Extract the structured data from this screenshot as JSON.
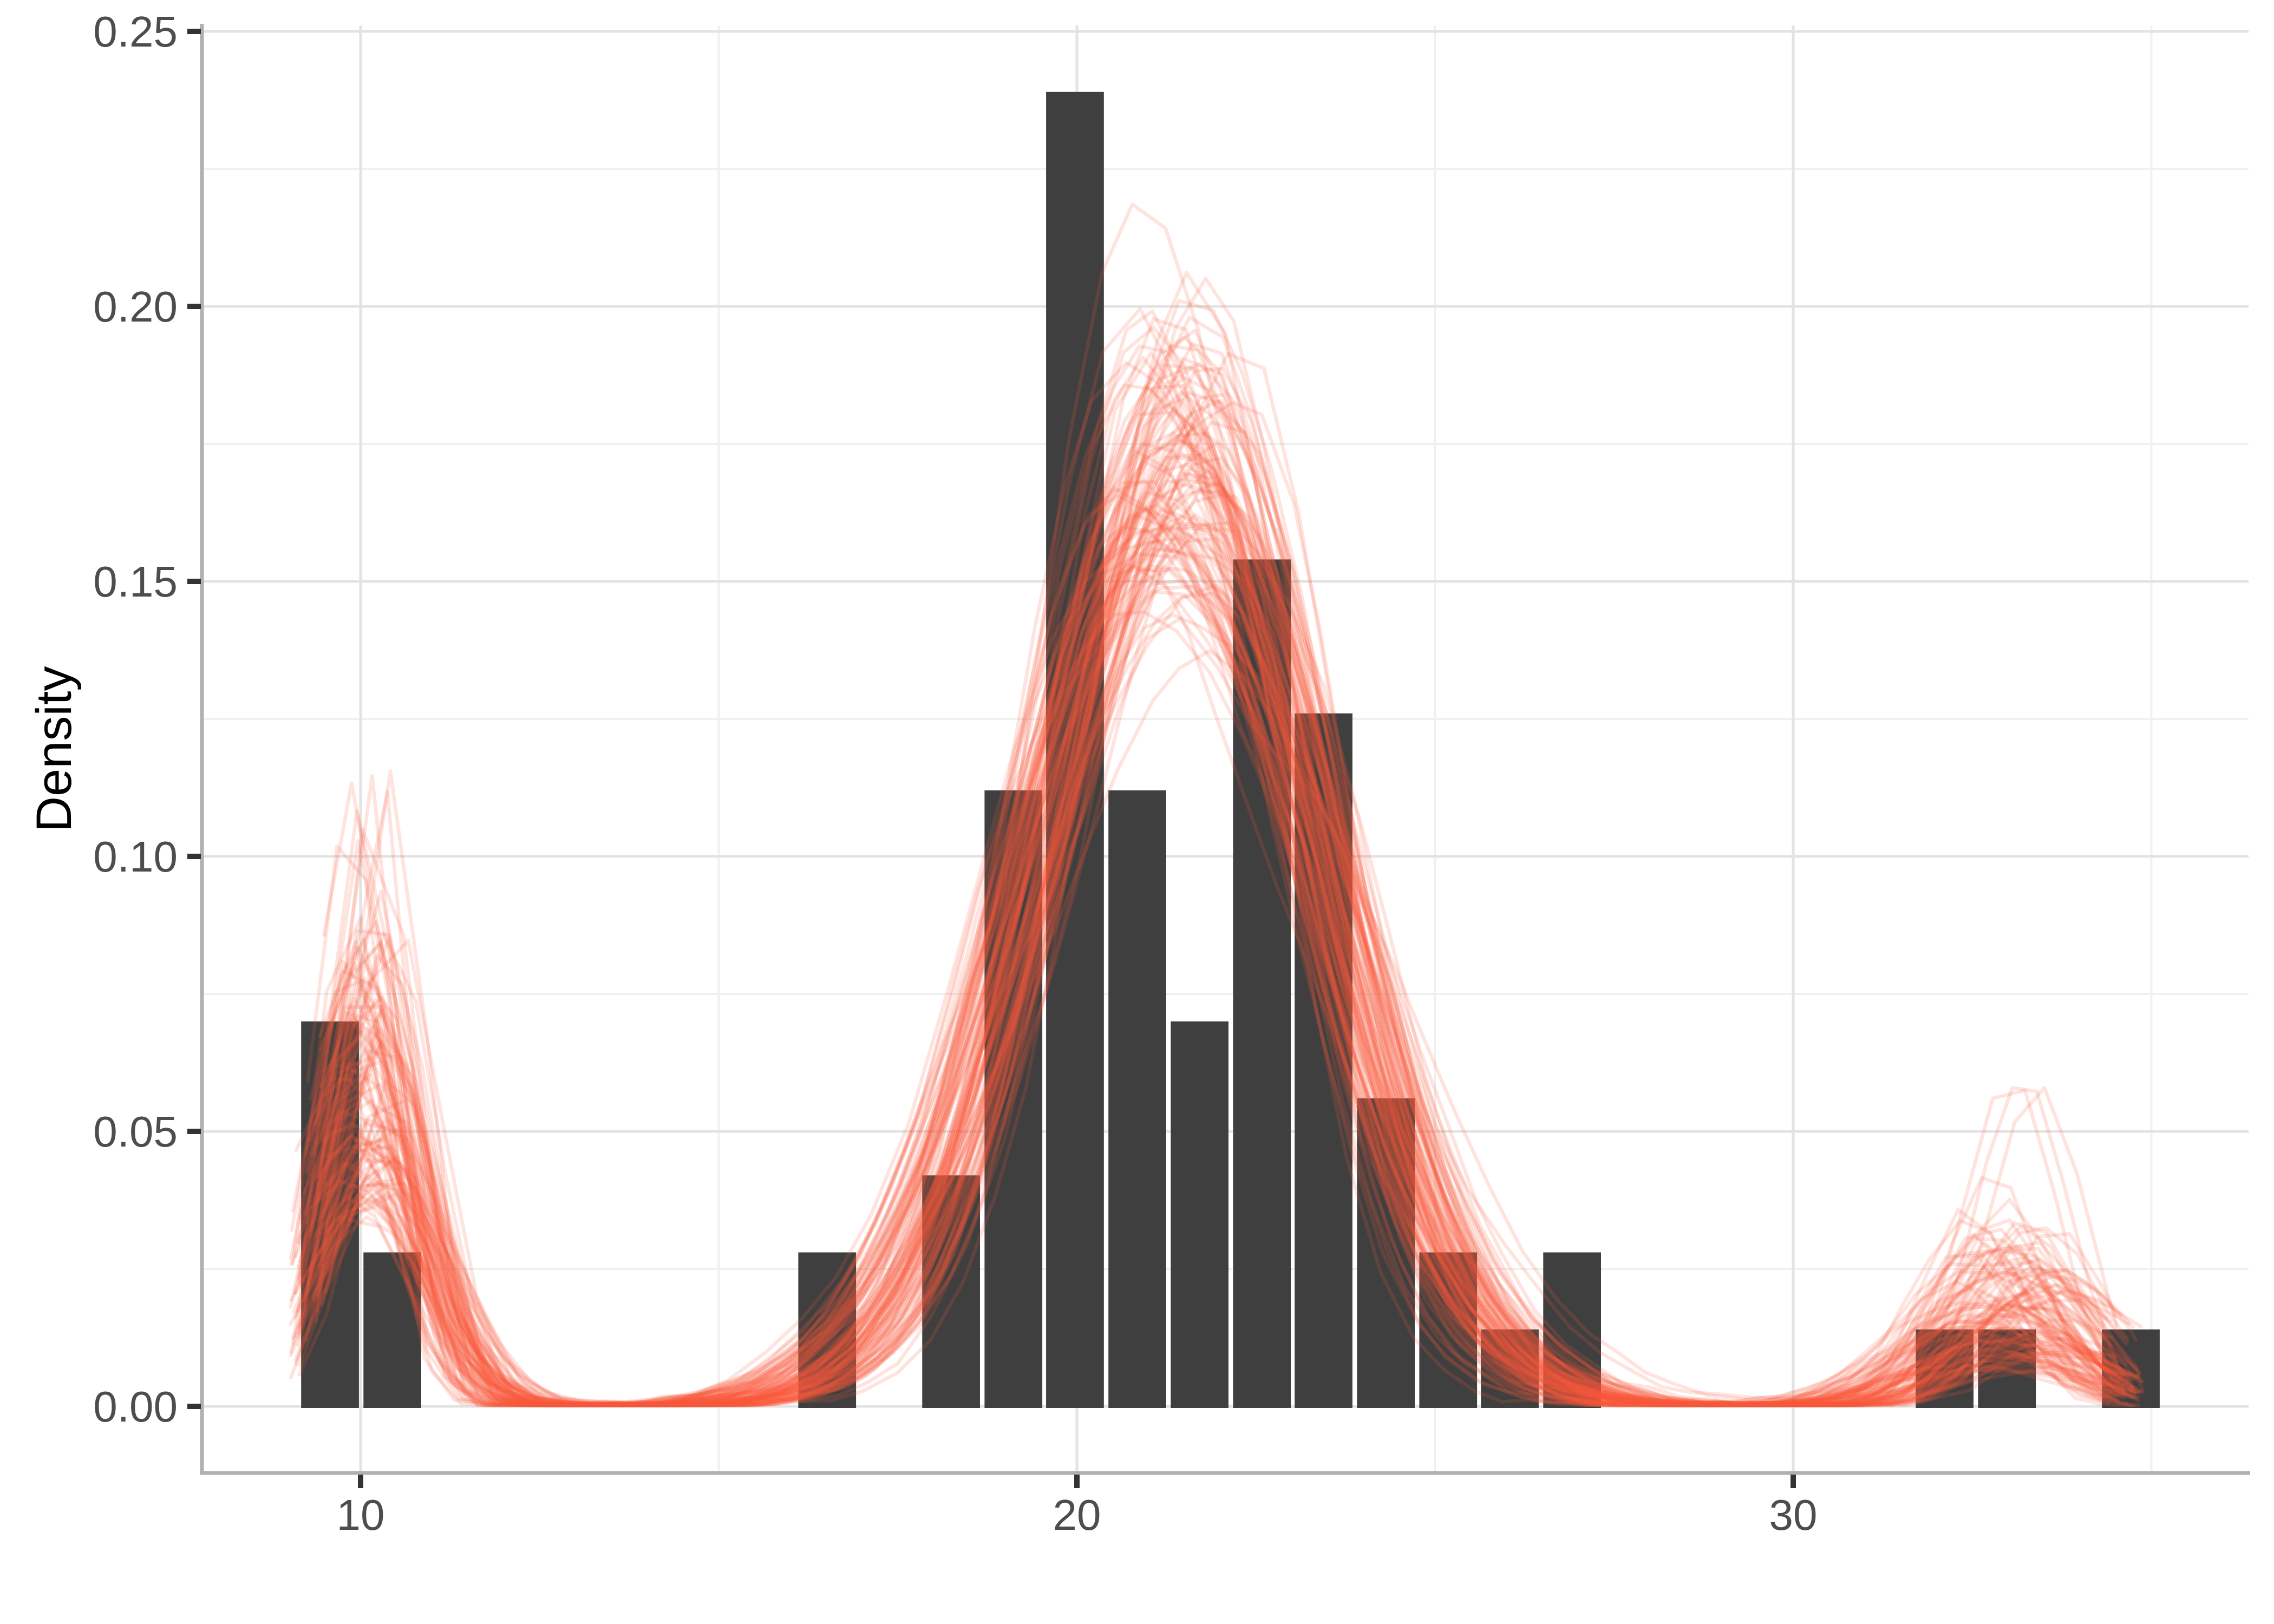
{
  "chart_data": {
    "type": "bar",
    "subtype": "histogram-with-density-curve-overlay",
    "title": "",
    "xlabel": "",
    "ylabel": "Density",
    "legend_position": "none",
    "grid": "major+minor",
    "x_axis": {
      "tick_labels": [
        "10",
        "20",
        "30"
      ],
      "tick_values": [
        10,
        20,
        30
      ],
      "minor_gridlines": [
        15,
        25,
        35
      ],
      "panel_range": [
        7.79,
        36.36
      ]
    },
    "y_axis": {
      "tick_labels": [
        "0.00",
        "0.05",
        "0.10",
        "0.15",
        "0.20",
        "0.25"
      ],
      "tick_values": [
        0,
        0.05,
        0.1,
        0.15,
        0.2,
        0.25
      ],
      "minor_gridlines": [
        0.025,
        0.075,
        0.125,
        0.175,
        0.225
      ],
      "panel_range": [
        -0.012,
        0.251
      ]
    },
    "histogram": {
      "bin_width": 0.867,
      "bars": [
        {
          "x": 9.14,
          "density": 0.07
        },
        {
          "x": 10.01,
          "density": 0.028
        },
        {
          "x": 16.08,
          "density": 0.028
        },
        {
          "x": 17.81,
          "density": 0.042
        },
        {
          "x": 18.68,
          "density": 0.112
        },
        {
          "x": 19.54,
          "density": 0.239
        },
        {
          "x": 20.41,
          "density": 0.112
        },
        {
          "x": 21.28,
          "density": 0.07
        },
        {
          "x": 22.15,
          "density": 0.154
        },
        {
          "x": 23.01,
          "density": 0.126
        },
        {
          "x": 23.88,
          "density": 0.056
        },
        {
          "x": 24.75,
          "density": 0.028
        },
        {
          "x": 25.61,
          "density": 0.014
        },
        {
          "x": 26.48,
          "density": 0.028
        },
        {
          "x": 31.68,
          "density": 0.014
        },
        {
          "x": 32.55,
          "density": 0.014
        },
        {
          "x": 34.28,
          "density": 0.014
        }
      ]
    },
    "density_overlay": {
      "n_curves": 110,
      "seed": 7,
      "x_start_range": [
        9.02,
        9.55
      ],
      "x_end_range": [
        34.3,
        34.9
      ],
      "left_peak": {
        "center_range": [
          9.75,
          10.45
        ],
        "sigma_range": [
          0.5,
          0.95
        ],
        "weight_range": [
          0.07,
          0.155
        ]
      },
      "main_peak": {
        "center_range": [
          20.85,
          21.95
        ],
        "sigma_range": [
          1.72,
          2.2
        ]
      },
      "right_peak": {
        "center_range": [
          32.3,
          33.8
        ],
        "sigma_range": [
          0.62,
          1.35
        ],
        "weight_range": [
          0.02,
          0.075
        ]
      }
    },
    "colors": {
      "background": "#FFFFFF",
      "bar": "#3F3F3F",
      "curve": "#FA5A3C",
      "curve_opacity": 0.17,
      "grid_major": "#E3E3E3",
      "grid_minor": "#F0F0F0",
      "axis_line": "#B0B0B0",
      "tick_mark": "#333333",
      "tick_label": "#4D4D4D",
      "axis_title": "#000000"
    }
  }
}
